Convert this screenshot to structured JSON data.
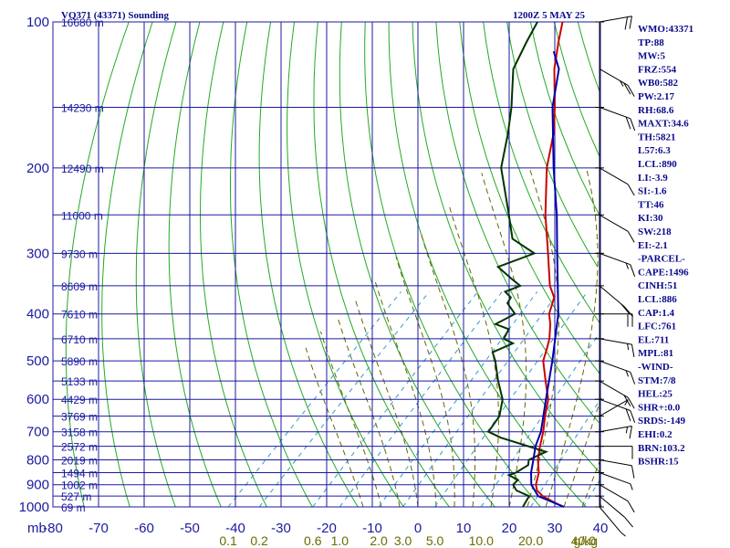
{
  "header": {
    "station": "VQ371 (43371) Sounding",
    "time": "1200Z  5 MAY 25"
  },
  "chart_data": {
    "type": "line",
    "subtype": "skew-T log-P sounding",
    "pressure_axis_unit": "mb",
    "temperature_range": [
      -80,
      40
    ],
    "pressure_range": [
      1000,
      100
    ],
    "pressure_ticks": [
      "100",
      "200",
      "300",
      "400",
      "500",
      "600",
      "700",
      "800",
      "900",
      "1000"
    ],
    "temperature_ticks": [
      "-80",
      "-70",
      "-60",
      "-50",
      "-40",
      "-30",
      "-20",
      "-10",
      "0",
      "10",
      "20",
      "30",
      "40"
    ],
    "mixing_ratio_ticks": [
      "0.1",
      "0.2",
      "0.6",
      "1.0",
      "2.0",
      "3.0",
      "5.0",
      "10.0",
      "20.0",
      "40.0"
    ],
    "mixing_ratio_values": [
      0.1,
      0.2,
      0.6,
      1.0,
      2.0,
      3.0,
      5.0,
      10.0,
      20.0,
      40.0
    ],
    "mixing_ratio_unit": "g/kg",
    "height_labels": [
      {
        "p": 100,
        "label": "16680 m"
      },
      {
        "p": 150,
        "label": "14230 m"
      },
      {
        "p": 200,
        "label": "12490 m"
      },
      {
        "p": 250,
        "label": "11000 m"
      },
      {
        "p": 300,
        "label": "9730 m"
      },
      {
        "p": 350,
        "label": "8609 m"
      },
      {
        "p": 400,
        "label": "7610 m"
      },
      {
        "p": 450,
        "label": "6710 m"
      },
      {
        "p": 500,
        "label": "5890 m"
      },
      {
        "p": 550,
        "label": "5133 m"
      },
      {
        "p": 600,
        "label": "4429 m"
      },
      {
        "p": 650,
        "label": "3769 m"
      },
      {
        "p": 700,
        "label": "3158 m"
      },
      {
        "p": 750,
        "label": "2572 m"
      },
      {
        "p": 800,
        "label": "2019 m"
      },
      {
        "p": 850,
        "label": "1494 m"
      },
      {
        "p": 900,
        "label": "1002 m"
      },
      {
        "p": 950,
        "label": "527 m"
      },
      {
        "p": 1000,
        "label": "69 m"
      }
    ],
    "series": [
      {
        "color": "#cc0000",
        "points": [
          [
            1000,
            32
          ],
          [
            980,
            29
          ],
          [
            950,
            25
          ],
          [
            925,
            22.5
          ],
          [
            900,
            21
          ],
          [
            850,
            19
          ],
          [
            800,
            16
          ],
          [
            750,
            13.5
          ],
          [
            700,
            11
          ],
          [
            650,
            8
          ],
          [
            600,
            5
          ],
          [
            550,
            0.4
          ],
          [
            500,
            -4.5
          ],
          [
            470,
            -6.5
          ],
          [
            450,
            -8
          ],
          [
            420,
            -11
          ],
          [
            400,
            -13.5
          ],
          [
            370,
            -16
          ],
          [
            350,
            -19.5
          ],
          [
            300,
            -27
          ],
          [
            250,
            -36
          ],
          [
            200,
            -46
          ],
          [
            170,
            -52
          ],
          [
            150,
            -57.5
          ],
          [
            125,
            -66
          ],
          [
            110,
            -71
          ],
          [
            100,
            -74.5
          ]
        ]
      },
      {
        "color": "#003300",
        "points": [
          [
            1000,
            23
          ],
          [
            950,
            22
          ],
          [
            925,
            18
          ],
          [
            900,
            16
          ],
          [
            880,
            16
          ],
          [
            860,
            13
          ],
          [
            850,
            14
          ],
          [
            820,
            15
          ],
          [
            800,
            14
          ],
          [
            770,
            16
          ],
          [
            720,
            3
          ],
          [
            700,
            -1
          ],
          [
            650,
            -2
          ],
          [
            600,
            -5
          ],
          [
            550,
            -10
          ],
          [
            500,
            -15
          ],
          [
            480,
            -17.5
          ],
          [
            460,
            -15
          ],
          [
            450,
            -18
          ],
          [
            430,
            -19
          ],
          [
            420,
            -23
          ],
          [
            400,
            -21
          ],
          [
            380,
            -25
          ],
          [
            370,
            -25.5
          ],
          [
            360,
            -28
          ],
          [
            350,
            -26
          ],
          [
            340,
            -29
          ],
          [
            320,
            -35
          ],
          [
            300,
            -30
          ],
          [
            280,
            -38
          ],
          [
            250,
            -44
          ],
          [
            200,
            -56
          ],
          [
            170,
            -62
          ],
          [
            150,
            -67
          ],
          [
            125,
            -75
          ],
          [
            110,
            -78
          ],
          [
            100,
            -80
          ]
        ]
      },
      {
        "color": "#0000aa",
        "points": [
          [
            1000,
            32
          ],
          [
            950,
            24
          ],
          [
            900,
            20
          ],
          [
            850,
            17.3
          ],
          [
            800,
            15
          ],
          [
            750,
            12.5
          ],
          [
            700,
            10.5
          ],
          [
            600,
            4.5
          ],
          [
            500,
            -2.5
          ],
          [
            400,
            -11.5
          ],
          [
            300,
            -25
          ],
          [
            250,
            -33.5
          ],
          [
            200,
            -44.5
          ],
          [
            150,
            -58
          ],
          [
            125,
            -65
          ],
          [
            115,
            -70
          ]
        ]
      }
    ]
  },
  "indices": [
    "WMO:43371",
    "TP:88",
    "MW:5",
    "FRZ:554",
    "WB0:582",
    "PW:2.17",
    "RH:68.6",
    "MAXT:34.6",
    "TH:5821",
    "L57:6.3",
    "LCL:890",
    "LI:-3.9",
    "SI:-1.6",
    "TT:46",
    "KI:30",
    "SW:218",
    "EI:-2.1",
    "-PARCEL-",
    "CAPE:1496",
    "CINH:51",
    "LCL:886",
    "CAP:1.4",
    "LFC:761",
    "EL:711",
    "MPL:81",
    "-WIND-",
    "STM:7/8",
    "HEL:25",
    "SHR+:0.0",
    "SRDS:-149",
    "EHI:0.2",
    "BRN:103.2",
    "BSHR:15"
  ],
  "winds": [
    {
      "p": 1000,
      "dir": 220,
      "spd": 5
    },
    {
      "p": 950,
      "dir": 230,
      "spd": 10
    },
    {
      "p": 900,
      "dir": 240,
      "spd": 10
    },
    {
      "p": 850,
      "dir": 250,
      "spd": 5
    },
    {
      "p": 800,
      "dir": 260,
      "spd": 10
    },
    {
      "p": 750,
      "dir": 270,
      "spd": 10
    },
    {
      "p": 700,
      "dir": 280,
      "spd": 15
    },
    {
      "p": 650,
      "dir": 300,
      "spd": 5
    },
    {
      "p": 600,
      "dir": 250,
      "spd": 20
    },
    {
      "p": 550,
      "dir": 240,
      "spd": 20
    },
    {
      "p": 500,
      "dir": 250,
      "spd": 15
    },
    {
      "p": 450,
      "dir": 260,
      "spd": 15
    },
    {
      "p": 400,
      "dir": 270,
      "spd": 20
    },
    {
      "p": 350,
      "dir": 230,
      "spd": 20
    },
    {
      "p": 300,
      "dir": 250,
      "spd": 15
    },
    {
      "p": 250,
      "dir": 240,
      "spd": 10
    },
    {
      "p": 200,
      "dir": 240,
      "spd": 10
    },
    {
      "p": 150,
      "dir": 250,
      "spd": 20
    },
    {
      "p": 125,
      "dir": 240,
      "spd": 25
    },
    {
      "p": 100,
      "dir": 280,
      "spd": 20
    }
  ],
  "colors": {
    "isobar": "#1a1aa0",
    "isotherm": "#1a1aa0",
    "dry_adiabat": "#22aa22",
    "moist_adiabat": "#666600",
    "mixing_ratio": "#3399cc",
    "temperature": "#cc0000",
    "dewpoint": "#003300",
    "parcel": "#0000aa"
  }
}
